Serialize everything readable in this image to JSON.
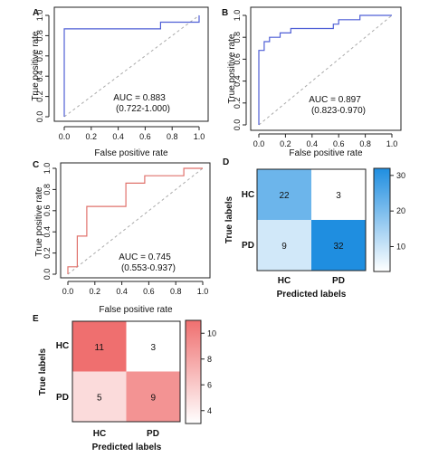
{
  "panels": {
    "a": {
      "label": "A",
      "type": "line",
      "xlabel": "False positive rate",
      "ylabel": "True positive rate",
      "xlim": [
        0,
        1
      ],
      "ylim": [
        0,
        1
      ],
      "ticks": [
        "0.0",
        "0.2",
        "0.4",
        "0.6",
        "0.8",
        "1.0"
      ],
      "auc_text": "AUC = 0.883",
      "ci_text": "(0.722-1.000)",
      "color": "#4f5fd6",
      "roc": [
        [
          0,
          0
        ],
        [
          0,
          0.867
        ],
        [
          0.714,
          0.867
        ],
        [
          0.714,
          0.933
        ],
        [
          1.0,
          0.933
        ],
        [
          1.0,
          1.0
        ]
      ]
    },
    "b": {
      "label": "B",
      "type": "line",
      "xlabel": "False positive rate",
      "ylabel": "True positive rate",
      "xlim": [
        0,
        1
      ],
      "ylim": [
        0,
        1
      ],
      "ticks": [
        "0.0",
        "0.2",
        "0.4",
        "0.6",
        "0.8",
        "1.0"
      ],
      "auc_text": "AUC = 0.897",
      "ci_text": "(0.823-0.970)",
      "color": "#4f5fd6",
      "roc": [
        [
          0,
          0
        ],
        [
          0,
          0.68
        ],
        [
          0.04,
          0.68
        ],
        [
          0.04,
          0.76
        ],
        [
          0.08,
          0.76
        ],
        [
          0.08,
          0.8
        ],
        [
          0.16,
          0.8
        ],
        [
          0.16,
          0.84
        ],
        [
          0.24,
          0.84
        ],
        [
          0.24,
          0.88
        ],
        [
          0.56,
          0.88
        ],
        [
          0.56,
          0.92
        ],
        [
          0.6,
          0.92
        ],
        [
          0.6,
          0.96
        ],
        [
          0.76,
          0.96
        ],
        [
          0.76,
          1.0
        ],
        [
          1.0,
          1.0
        ]
      ]
    },
    "c": {
      "label": "C",
      "type": "line",
      "xlabel": "False positive rate",
      "ylabel": "True positive rate",
      "xlim": [
        0,
        1
      ],
      "ylim": [
        0,
        1
      ],
      "ticks": [
        "0.0",
        "0.2",
        "0.4",
        "0.6",
        "0.8",
        "1.0"
      ],
      "auc_text": "AUC = 0.745",
      "ci_text": "(0.553-0.937)",
      "color": "#e0726c",
      "roc": [
        [
          0,
          0
        ],
        [
          0,
          0.07
        ],
        [
          0.07,
          0.07
        ],
        [
          0.07,
          0.36
        ],
        [
          0.14,
          0.36
        ],
        [
          0.14,
          0.64
        ],
        [
          0.43,
          0.64
        ],
        [
          0.43,
          0.86
        ],
        [
          0.57,
          0.86
        ],
        [
          0.57,
          0.93
        ],
        [
          0.86,
          0.93
        ],
        [
          0.86,
          1.0
        ],
        [
          1.0,
          1.0
        ]
      ]
    },
    "d": {
      "label": "D",
      "type": "heatmap",
      "xlabel": "Predicted labels",
      "ylabel": "True labels",
      "categories": [
        "HC",
        "PD"
      ],
      "values": [
        [
          22,
          3
        ],
        [
          9,
          32
        ]
      ],
      "colorbar_ticks": [
        "10",
        "20",
        "30"
      ],
      "low_color": "#ffffff",
      "high_color": "#1f8ee0"
    },
    "e": {
      "label": "E",
      "type": "heatmap",
      "xlabel": "Predicted labels",
      "ylabel": "True labels",
      "categories": [
        "HC",
        "PD"
      ],
      "values": [
        [
          11,
          3
        ],
        [
          5,
          9
        ]
      ],
      "colorbar_ticks": [
        "4",
        "6",
        "8",
        "10"
      ],
      "low_color": "#ffffff",
      "high_color": "#ef6f6f"
    }
  }
}
